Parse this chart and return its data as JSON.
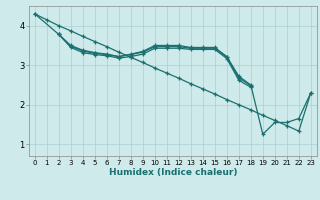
{
  "xlabel": "Humidex (Indice chaleur)",
  "background_color": "#ceeaea",
  "grid_color": "#aacfcf",
  "line_color": "#1a7070",
  "xlim": [
    -0.5,
    23.5
  ],
  "ylim": [
    0.7,
    4.5
  ],
  "xticks": [
    0,
    1,
    2,
    3,
    4,
    5,
    6,
    7,
    8,
    9,
    10,
    11,
    12,
    13,
    14,
    15,
    16,
    17,
    18,
    19,
    20,
    21,
    22,
    23
  ],
  "yticks": [
    1,
    2,
    3,
    4
  ],
  "line1_x": [
    0,
    1,
    2,
    3,
    4,
    5,
    6,
    7,
    8,
    9,
    10,
    11,
    12,
    13,
    14,
    15,
    16,
    17,
    18,
    19,
    20,
    21,
    22,
    23
  ],
  "line1_y": [
    4.3,
    4.15,
    4.0,
    3.87,
    3.73,
    3.6,
    3.47,
    3.33,
    3.2,
    3.07,
    2.93,
    2.8,
    2.67,
    2.53,
    2.4,
    2.27,
    2.13,
    2.0,
    1.87,
    1.73,
    1.6,
    1.47,
    1.33,
    2.3
  ],
  "line2_x": [
    0,
    2,
    3,
    4,
    5,
    6,
    7,
    8,
    9,
    10,
    11,
    12,
    13,
    14,
    15,
    16,
    17,
    18,
    19,
    20,
    21,
    22,
    23
  ],
  "line2_y": [
    4.3,
    3.78,
    3.5,
    3.38,
    3.32,
    3.28,
    3.22,
    3.28,
    3.35,
    3.5,
    3.5,
    3.5,
    3.45,
    3.45,
    3.45,
    3.22,
    2.72,
    2.5,
    1.25,
    1.55,
    1.55,
    1.65,
    2.3
  ],
  "line3_x": [
    2,
    3,
    4,
    5,
    6,
    7,
    8,
    9,
    10,
    11,
    12,
    13,
    14,
    15,
    16,
    17,
    18
  ],
  "line3_y": [
    3.78,
    3.48,
    3.36,
    3.3,
    3.27,
    3.22,
    3.27,
    3.33,
    3.47,
    3.47,
    3.47,
    3.43,
    3.43,
    3.43,
    3.2,
    2.68,
    2.48
  ],
  "line4_x": [
    2,
    3,
    4,
    5,
    6,
    7,
    8,
    9,
    10,
    11,
    12,
    13,
    14,
    15,
    16,
    17,
    18
  ],
  "line4_y": [
    3.78,
    3.45,
    3.32,
    3.27,
    3.24,
    3.18,
    3.22,
    3.28,
    3.43,
    3.43,
    3.43,
    3.4,
    3.4,
    3.4,
    3.17,
    2.62,
    2.44
  ]
}
